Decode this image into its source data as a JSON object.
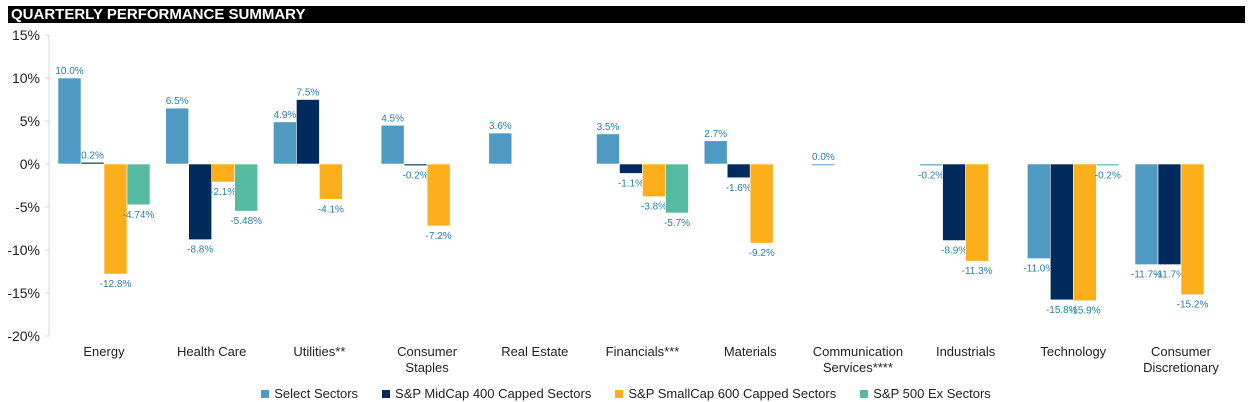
{
  "header": {
    "title": "QUARTERLY PERFORMANCE SUMMARY"
  },
  "chart_data": {
    "type": "bar",
    "title": "QUARTERLY PERFORMANCE SUMMARY",
    "xlabel": "",
    "ylabel": "",
    "ylim": [
      -20,
      15
    ],
    "yticks": [
      "15%",
      "10%",
      "5%",
      "0%",
      "-5%",
      "-10%",
      "-15%",
      "-20%"
    ],
    "ytick_values": [
      15,
      10,
      5,
      0,
      -5,
      -10,
      -15,
      -20
    ],
    "grid": false,
    "legend_position": "bottom",
    "categories": [
      "Energy",
      "Health Care",
      "Utilities**",
      "Consumer Staples",
      "Real Estate",
      "Financials***",
      "Materials",
      "Communication Services****",
      "Industrials",
      "Technology",
      "Consumer Discretionary"
    ],
    "series": [
      {
        "name": "Select Sectors",
        "color": "#4E9AC2",
        "values": [
          10.0,
          6.5,
          4.9,
          4.5,
          3.6,
          3.5,
          2.7,
          0.0,
          -0.2,
          -11.0,
          -11.7
        ],
        "labels": [
          "10.0%",
          "6.5%",
          "4.9%",
          "4.5%",
          "3.6%",
          "3.5%",
          "2.7%",
          "0.0%",
          "-0.2%",
          "-11.0%",
          "-11.7%"
        ]
      },
      {
        "name": "S&P MidCap 400 Capped Sectors",
        "color": "#002B5C",
        "values": [
          0.2,
          -8.8,
          7.5,
          -0.2,
          null,
          -1.1,
          -1.6,
          null,
          -8.9,
          -15.8,
          -11.7
        ],
        "labels": [
          "0.2%",
          "-8.8%",
          "7.5%",
          "-0.2%",
          null,
          "-1.1%",
          "-1.6%",
          null,
          "-8.9%",
          "-15.8%",
          "-11.7%"
        ]
      },
      {
        "name": "S&P SmallCap 600 Capped Sectors",
        "color": "#FDAE1B",
        "values": [
          -12.8,
          -2.1,
          -4.1,
          -7.2,
          null,
          -3.8,
          -9.2,
          null,
          -11.3,
          -15.9,
          -15.2
        ],
        "labels": [
          "-12.8%",
          "-2.1%",
          "-4.1%",
          "-7.2%",
          null,
          "-3.8%",
          "-9.2%",
          null,
          "-11.3%",
          "-15.9%",
          "-15.2%"
        ]
      },
      {
        "name": "S&P 500 Ex Sectors",
        "color": "#55BBA0",
        "values": [
          -4.74,
          -5.48,
          null,
          null,
          null,
          -5.7,
          null,
          null,
          null,
          -0.2,
          null
        ],
        "labels": [
          "-4.74%",
          "-5.48%",
          null,
          null,
          null,
          "-5.7%",
          null,
          null,
          null,
          "-0.2%",
          null
        ]
      }
    ],
    "label_color": "#2A7FA6"
  }
}
